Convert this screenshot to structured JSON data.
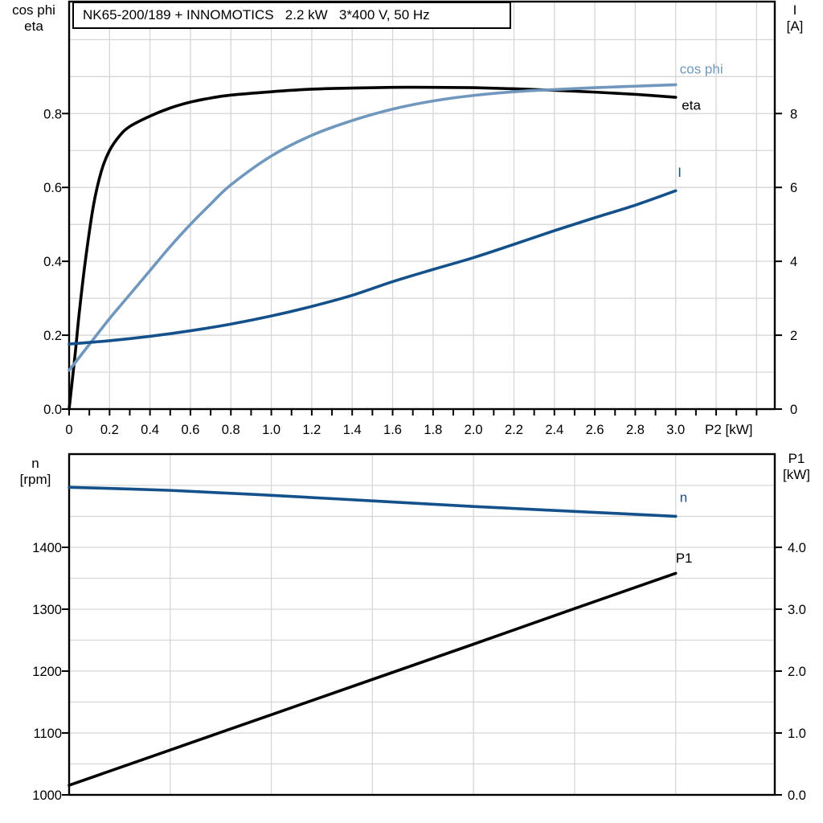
{
  "header": {
    "title": "NK65-200/189 + INNOMOTICS   2.2 kW   3*400 V, 50 Hz"
  },
  "colors": {
    "eta": "#000000",
    "cos_phi": "#7097bd",
    "current": "#14518b",
    "speed": "#14518b",
    "p1": "#000000",
    "grid": "#d6d6d6",
    "axis": "#000000",
    "background": "#ffffff"
  },
  "chart_data": [
    {
      "type": "line",
      "title": "NK65-200/189 + INNOMOTICS   2.2 kW   3*400 V, 50 Hz",
      "x_axis": {
        "name": "P2 [kW]",
        "min": 0,
        "max": 3.49,
        "tick_values": [
          0,
          0.2,
          0.4,
          0.6,
          0.8,
          1.0,
          1.2,
          1.4,
          1.6,
          1.8,
          2.0,
          2.2,
          2.4,
          2.6,
          2.8,
          3.0
        ],
        "tick_labels": [
          "0",
          "0.2",
          "0.4",
          "0.6",
          "0.8",
          "1.0",
          "1.2",
          "1.4",
          "1.6",
          "1.8",
          "2.0",
          "2.2",
          "2.4",
          "2.6",
          "2.8",
          "3.0"
        ],
        "minor_tick_step": 0.1,
        "minor_tick_max": 3.4,
        "grid_step": 0.2,
        "grid_on": true
      },
      "y_left": {
        "name_line1": "cos phi",
        "name_line2": "eta",
        "min": 0,
        "max": 1.103,
        "tick_values": [
          0,
          0.2,
          0.4,
          0.6,
          0.8
        ],
        "tick_labels": [
          "0.0",
          "0.2",
          "0.4",
          "0.6",
          "0.8"
        ],
        "grid_step": 0.1
      },
      "y_right": {
        "name_line1": "I",
        "name_line2": "[A]",
        "min": 0,
        "max": 11.03,
        "tick_values": [
          0,
          2,
          4,
          6,
          8
        ],
        "tick_labels": [
          "0",
          "2",
          "4",
          "6",
          "8"
        ]
      },
      "series": [
        {
          "name": "eta",
          "axis": "left",
          "color": "#000000",
          "label_text": "eta",
          "label_x": 3.03,
          "label_y": 0.823,
          "points": [
            [
              0,
              0
            ],
            [
              0.03,
              0.15
            ],
            [
              0.05,
              0.26
            ],
            [
              0.08,
              0.4
            ],
            [
              0.12,
              0.55
            ],
            [
              0.16,
              0.645
            ],
            [
              0.2,
              0.7
            ],
            [
              0.25,
              0.74
            ],
            [
              0.3,
              0.765
            ],
            [
              0.4,
              0.793
            ],
            [
              0.5,
              0.815
            ],
            [
              0.6,
              0.831
            ],
            [
              0.7,
              0.842
            ],
            [
              0.8,
              0.85
            ],
            [
              1.0,
              0.859
            ],
            [
              1.2,
              0.866
            ],
            [
              1.4,
              0.869
            ],
            [
              1.6,
              0.871
            ],
            [
              1.8,
              0.871
            ],
            [
              2.0,
              0.87
            ],
            [
              2.2,
              0.867
            ],
            [
              2.4,
              0.863
            ],
            [
              2.6,
              0.858
            ],
            [
              2.8,
              0.852
            ],
            [
              3.0,
              0.844
            ]
          ]
        },
        {
          "name": "cos phi",
          "axis": "left",
          "color": "#7097bd",
          "label_text": "cos phi",
          "label_x": 3.02,
          "label_y": 0.921,
          "points": [
            [
              0,
              0.105
            ],
            [
              0.1,
              0.175
            ],
            [
              0.2,
              0.245
            ],
            [
              0.3,
              0.31
            ],
            [
              0.4,
              0.375
            ],
            [
              0.5,
              0.44
            ],
            [
              0.6,
              0.5
            ],
            [
              0.7,
              0.555
            ],
            [
              0.8,
              0.607
            ],
            [
              1.0,
              0.685
            ],
            [
              1.2,
              0.741
            ],
            [
              1.4,
              0.781
            ],
            [
              1.6,
              0.812
            ],
            [
              1.8,
              0.834
            ],
            [
              2.0,
              0.849
            ],
            [
              2.2,
              0.859
            ],
            [
              2.4,
              0.865
            ],
            [
              2.6,
              0.87
            ],
            [
              2.8,
              0.874
            ],
            [
              3.0,
              0.878
            ]
          ]
        },
        {
          "name": "I",
          "axis": "right",
          "color": "#14518b",
          "label_text": "I",
          "label_x": 3.01,
          "label_y": 6.42,
          "points": [
            [
              0,
              1.76
            ],
            [
              0.2,
              1.85
            ],
            [
              0.4,
              1.97
            ],
            [
              0.6,
              2.12
            ],
            [
              0.8,
              2.3
            ],
            [
              1.0,
              2.52
            ],
            [
              1.2,
              2.78
            ],
            [
              1.4,
              3.08
            ],
            [
              1.6,
              3.45
            ],
            [
              1.8,
              3.78
            ],
            [
              2.0,
              4.1
            ],
            [
              2.2,
              4.46
            ],
            [
              2.4,
              4.83
            ],
            [
              2.6,
              5.18
            ],
            [
              2.8,
              5.52
            ],
            [
              3.0,
              5.91
            ]
          ]
        }
      ]
    },
    {
      "type": "line",
      "title": "",
      "x_axis": {
        "name": "",
        "min": 0,
        "max": 3.49,
        "tick_values": [],
        "tick_labels": [],
        "minor_tick_step": 0,
        "minor_tick_max": 0,
        "grid_step": 0.5,
        "grid_on": true
      },
      "y_left": {
        "name_line1": "n",
        "name_line2": "[rpm]",
        "min": 1000,
        "max": 1550.6,
        "tick_values": [
          1000,
          1100,
          1200,
          1300,
          1400
        ],
        "tick_labels": [
          "1000",
          "1100",
          "1200",
          "1300",
          "1400"
        ],
        "grid_step": 50
      },
      "y_right": {
        "name_line1": "P1",
        "name_line2": "[kW]",
        "min": 0,
        "max": 5.506,
        "tick_values": [
          0,
          1,
          2,
          3,
          4
        ],
        "tick_labels": [
          "0.0",
          "1.0",
          "2.0",
          "3.0",
          "4.0"
        ]
      },
      "series": [
        {
          "name": "n",
          "axis": "left",
          "color": "#14518b",
          "label_text": "n",
          "label_x": 3.02,
          "label_y": 1481,
          "points": [
            [
              0,
              1497
            ],
            [
              0.5,
              1492
            ],
            [
              1.0,
              1484
            ],
            [
              1.5,
              1475
            ],
            [
              2.0,
              1466
            ],
            [
              2.5,
              1458
            ],
            [
              3.0,
              1450
            ]
          ]
        },
        {
          "name": "P1",
          "axis": "right",
          "color": "#000000",
          "label_text": "P1",
          "label_x": 3.0,
          "label_y": 3.83,
          "points": [
            [
              0,
              0.155
            ],
            [
              0.5,
              0.725
            ],
            [
              1.0,
              1.295
            ],
            [
              1.5,
              1.865
            ],
            [
              2.0,
              2.435
            ],
            [
              2.5,
              3.01
            ],
            [
              3.0,
              3.58
            ]
          ]
        }
      ]
    }
  ]
}
